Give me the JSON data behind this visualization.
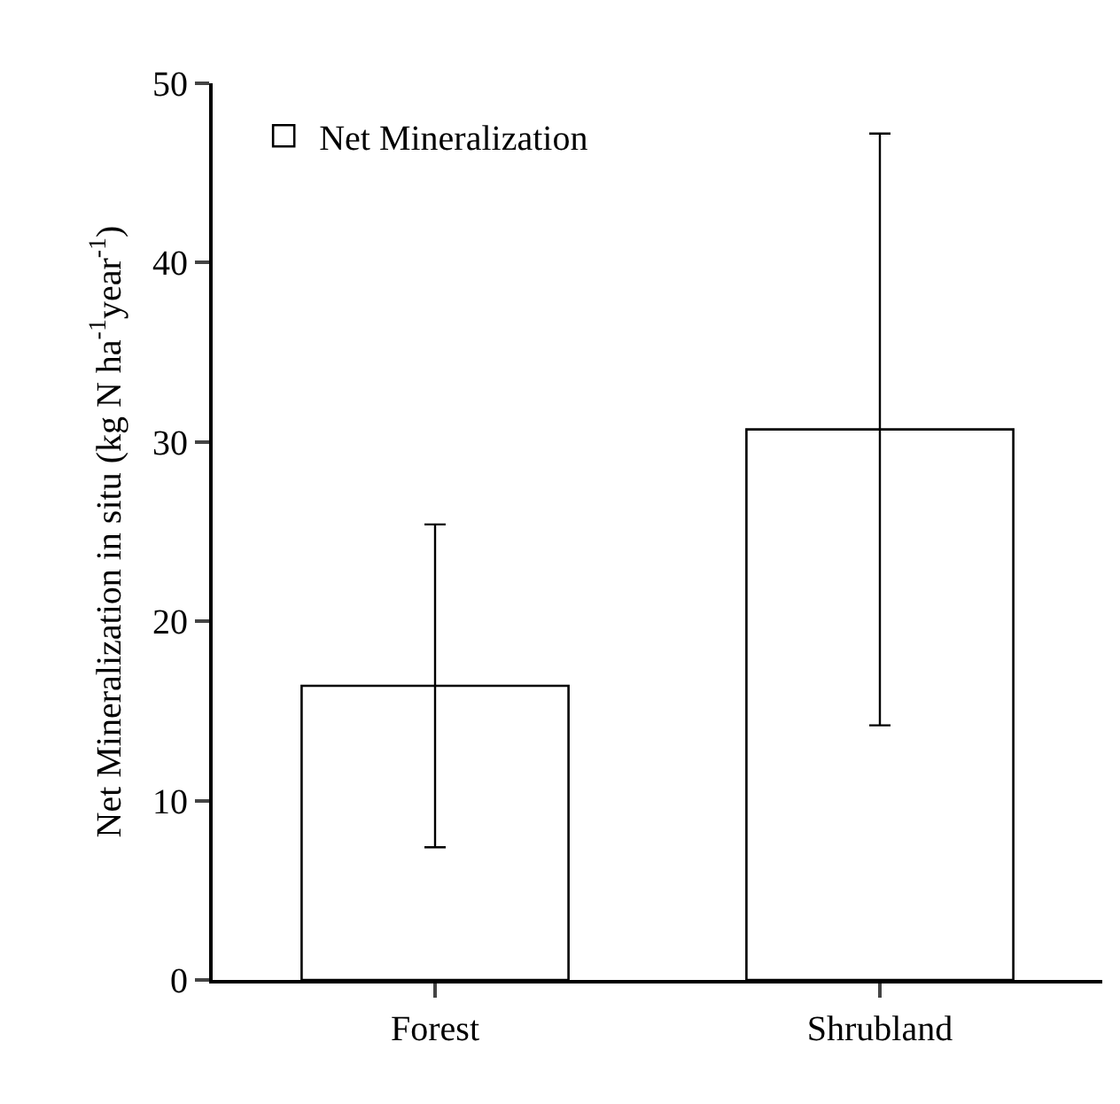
{
  "chart_data": {
    "type": "bar",
    "categories": [
      "Forest",
      "Shrubland"
    ],
    "series": [
      {
        "name": "Net Mineralization",
        "color": "#ffffff",
        "values": [
          16.4,
          30.7
        ],
        "errors": [
          9.0,
          16.5
        ]
      }
    ],
    "ylabel": "Net Mineralization in situ (kg N ha$^{-1}$year$^{-1}$)",
    "ylim": [
      0,
      50
    ],
    "yticks": [
      0,
      10,
      20,
      30,
      40,
      50
    ],
    "grid": false,
    "legend": "top left"
  }
}
